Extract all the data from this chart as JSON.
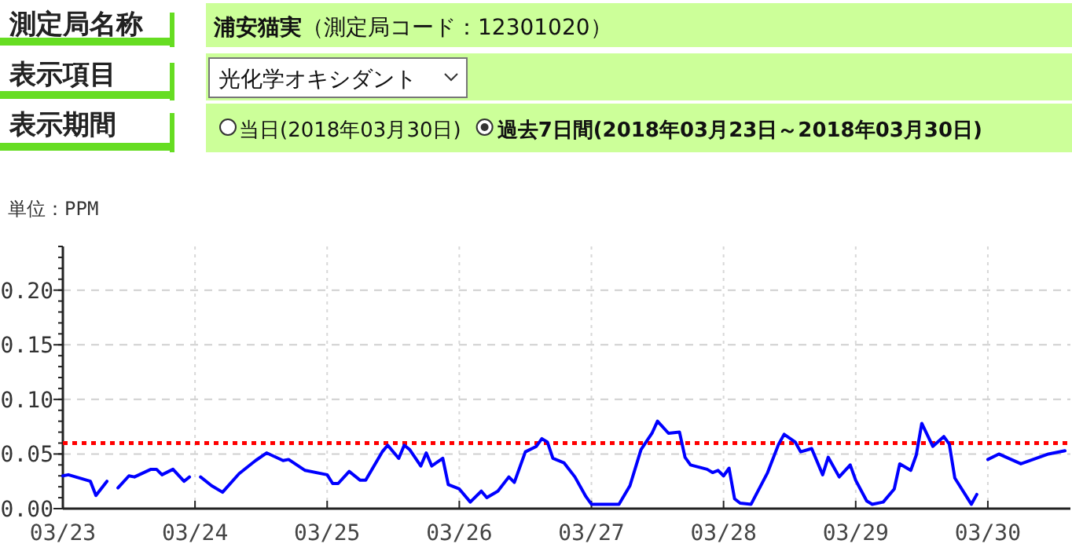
{
  "chart_data": {
    "type": "line",
    "annotations": [
      "測定局名称",
      "浦安猫実",
      "（測定局コード：12301020）",
      "表示項目",
      "光化学オキシダント",
      "表示期間",
      "当日(2018年03月30日)",
      "過去7日間(2018年03月23日～2018年03月30日)"
    ],
    "ylabel": "単位：PPM",
    "x": [
      "2018-03-23T00:00",
      "2018-03-23T01:00",
      "2018-03-23T05:00",
      "2018-03-23T06:00",
      "2018-03-23T08:00",
      "2018-03-23T09:00",
      "2018-03-23T10:00",
      "2018-03-23T12:00",
      "2018-03-23T13:00",
      "2018-03-23T16:00",
      "2018-03-23T17:00",
      "2018-03-23T18:00",
      "2018-03-23T20:00",
      "2018-03-23T22:00",
      "2018-03-23T23:00",
      "2018-03-24T00:00",
      "2018-03-24T01:00",
      "2018-03-24T03:00",
      "2018-03-24T05:00",
      "2018-03-24T08:00",
      "2018-03-24T11:00",
      "2018-03-24T13:00",
      "2018-03-24T16:00",
      "2018-03-24T17:00",
      "2018-03-24T20:00",
      "2018-03-25T00:00",
      "2018-03-25T01:00",
      "2018-03-25T02:00",
      "2018-03-25T04:00",
      "2018-03-25T06:00",
      "2018-03-25T07:00",
      "2018-03-25T10:00",
      "2018-03-25T11:00",
      "2018-03-25T13:00",
      "2018-03-25T14:00",
      "2018-03-25T15:00",
      "2018-03-25T17:00",
      "2018-03-25T18:00",
      "2018-03-25T19:00",
      "2018-03-25T21:00",
      "2018-03-25T22:00",
      "2018-03-26T00:00",
      "2018-03-26T02:00",
      "2018-03-26T04:00",
      "2018-03-26T05:00",
      "2018-03-26T07:00",
      "2018-03-26T09:00",
      "2018-03-26T10:00",
      "2018-03-26T12:00",
      "2018-03-26T14:00",
      "2018-03-26T15:00",
      "2018-03-26T16:00",
      "2018-03-26T17:00",
      "2018-03-26T19:00",
      "2018-03-26T21:00",
      "2018-03-26T23:00",
      "2018-03-27T00:00",
      "2018-03-27T03:00",
      "2018-03-27T05:00",
      "2018-03-27T07:00",
      "2018-03-27T09:00",
      "2018-03-27T11:00",
      "2018-03-27T12:00",
      "2018-03-27T14:00",
      "2018-03-27T16:00",
      "2018-03-27T17:00",
      "2018-03-27T18:00",
      "2018-03-27T21:00",
      "2018-03-27T22:00",
      "2018-03-27T23:00",
      "2018-03-28T00:00",
      "2018-03-28T01:00",
      "2018-03-28T02:00",
      "2018-03-28T03:00",
      "2018-03-28T05:00",
      "2018-03-28T08:00",
      "2018-03-28T10:00",
      "2018-03-28T11:00",
      "2018-03-28T13:00",
      "2018-03-28T14:00",
      "2018-03-28T16:00",
      "2018-03-28T18:00",
      "2018-03-28T19:00",
      "2018-03-28T21:00",
      "2018-03-28T23:00",
      "2018-03-29T00:00",
      "2018-03-29T02:00",
      "2018-03-29T03:00",
      "2018-03-29T05:00",
      "2018-03-29T07:00",
      "2018-03-29T08:00",
      "2018-03-29T10:00",
      "2018-03-29T11:00",
      "2018-03-29T12:00",
      "2018-03-29T14:00",
      "2018-03-29T16:00",
      "2018-03-29T17:00",
      "2018-03-29T18:00",
      "2018-03-29T21:00",
      "2018-03-29T22:00",
      "2018-03-29T23:00",
      "2018-03-30T00:00",
      "2018-03-30T02:00",
      "2018-03-30T06:00",
      "2018-03-30T11:00",
      "2018-03-30T14:00"
    ],
    "series": [
      {
        "color": "#0000ff",
        "values": [
          0.03,
          0.031,
          0.025,
          0.012,
          0.025,
          null,
          0.019,
          0.03,
          0.029,
          0.036,
          0.036,
          0.031,
          0.036,
          0.025,
          0.029,
          null,
          0.029,
          0.021,
          0.015,
          0.032,
          0.044,
          0.051,
          0.044,
          0.045,
          0.035,
          0.031,
          0.023,
          0.023,
          0.034,
          0.026,
          0.026,
          0.052,
          0.058,
          0.046,
          0.058,
          0.054,
          0.039,
          0.051,
          0.039,
          0.046,
          0.022,
          0.018,
          0.006,
          0.016,
          0.01,
          0.016,
          0.029,
          0.024,
          0.052,
          0.057,
          0.064,
          0.061,
          0.046,
          0.042,
          0.029,
          0.011,
          0.004,
          0.004,
          0.004,
          0.021,
          0.054,
          0.069,
          0.08,
          0.069,
          0.07,
          0.047,
          0.04,
          0.036,
          0.033,
          0.035,
          0.03,
          0.037,
          0.009,
          0.005,
          0.004,
          0.033,
          0.059,
          0.068,
          0.061,
          0.052,
          0.055,
          0.031,
          0.047,
          0.029,
          0.04,
          0.026,
          0.007,
          0.004,
          0.006,
          0.018,
          0.041,
          0.035,
          0.049,
          0.078,
          0.057,
          0.066,
          0.059,
          0.028,
          0.004,
          0.013,
          null,
          0.045,
          0.05,
          0.041,
          0.05,
          0.053
        ]
      }
    ],
    "xlim": [
      "2018-03-23T00:00",
      "2018-03-30T15:00"
    ],
    "xticks": [
      {
        "value": "2018-03-23",
        "label": "03/23"
      },
      {
        "value": "2018-03-24",
        "label": "03/24"
      },
      {
        "value": "2018-03-25",
        "label": "03/25"
      },
      {
        "value": "2018-03-26",
        "label": "03/26"
      },
      {
        "value": "2018-03-27",
        "label": "03/27"
      },
      {
        "value": "2018-03-28",
        "label": "03/28"
      },
      {
        "value": "2018-03-29",
        "label": "03/29"
      },
      {
        "value": "2018-03-30",
        "label": "03/30"
      }
    ],
    "ylim": [
      0,
      0.24
    ],
    "yticks": [
      {
        "value": 0,
        "label": "0.00"
      },
      {
        "value": 0.05,
        "label": "0.05"
      },
      {
        "value": 0.1,
        "label": "0.10"
      },
      {
        "value": 0.15,
        "label": "0.15"
      },
      {
        "value": 0.2,
        "label": "0.20"
      }
    ],
    "ref_lines": [
      {
        "axis": "y",
        "value": 0.06,
        "color": "#ff0000",
        "line_style": "dotted"
      }
    ],
    "grid": true
  }
}
